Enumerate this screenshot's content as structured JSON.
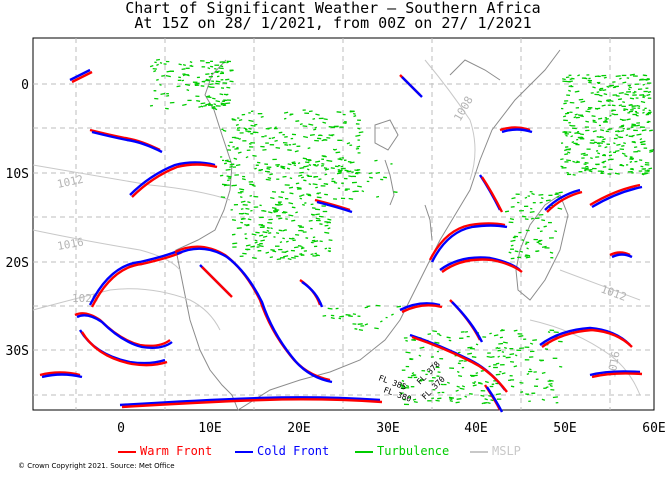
{
  "title_line1": "Chart of Significant Weather — Southern Africa",
  "title_line2": "At 15Z on 28/ 1/2021, from 00Z on 27/ 1/2021",
  "axes": {
    "lon_ticks": [
      "0",
      "10E",
      "20E",
      "30E",
      "40E",
      "50E",
      "60E"
    ],
    "lat_ticks": [
      "0",
      "10S",
      "20S",
      "30S"
    ]
  },
  "isobar_labels": [
    "1012",
    "1016",
    "1020",
    "1008",
    "1012",
    "1016"
  ],
  "flight_level_labels": [
    "FL 385",
    "FL 378",
    "FL 380",
    "FL 370"
  ],
  "legend": [
    {
      "label": "Warm Front",
      "color": "#ff0000"
    },
    {
      "label": "Cold Front",
      "color": "#0000ff"
    },
    {
      "label": "Turbulence",
      "color": "#00cc00"
    },
    {
      "label": "MSLP",
      "color": "#c8c8c8"
    }
  ],
  "copyright": "© Crown Copyright 2021. Source: Met Office",
  "colors": {
    "warm": "#ff0000",
    "cold": "#0000ff",
    "turb": "#00cc00",
    "mslp": "#c8c8c8",
    "coast": "#8c8c8c",
    "grid": "#bdbdbd"
  }
}
